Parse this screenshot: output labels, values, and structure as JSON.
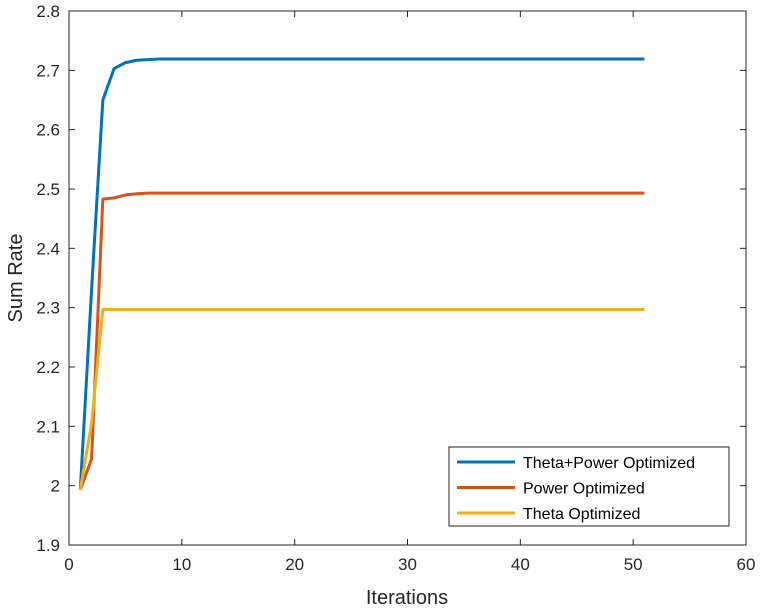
{
  "chart_data": {
    "type": "line",
    "xlabel": "Iterations",
    "ylabel": "Sum Rate",
    "xlim": [
      0,
      60
    ],
    "ylim": [
      1.9,
      2.8
    ],
    "xticks": [
      0,
      10,
      20,
      30,
      40,
      50,
      60
    ],
    "yticks": [
      1.9,
      2.0,
      2.1,
      2.2,
      2.3,
      2.4,
      2.5,
      2.6,
      2.7,
      2.8
    ],
    "xtick_labels": [
      "0",
      "10",
      "20",
      "30",
      "40",
      "50",
      "60"
    ],
    "ytick_labels": [
      "1.9",
      "2",
      "2.1",
      "2.2",
      "2.3",
      "2.4",
      "2.5",
      "2.6",
      "2.7",
      "2.8"
    ],
    "grid": false,
    "legend_position": "bottom-right",
    "series": [
      {
        "name": "Theta+Power Optimized",
        "color": "#0072BD",
        "x": [
          1,
          2,
          3,
          4,
          5,
          6,
          7,
          8,
          51
        ],
        "y": [
          1.993,
          2.33,
          2.65,
          2.703,
          2.713,
          2.717,
          2.718,
          2.719,
          2.719
        ]
      },
      {
        "name": "Power Optimized",
        "color": "#D95319",
        "x": [
          1,
          2,
          3,
          4,
          5,
          6,
          7,
          51
        ],
        "y": [
          1.993,
          2.045,
          2.483,
          2.485,
          2.49,
          2.492,
          2.493,
          2.493
        ]
      },
      {
        "name": "Theta Optimized",
        "color": "#EDB120",
        "x": [
          1,
          2,
          3,
          51
        ],
        "y": [
          1.993,
          2.105,
          2.297,
          2.297
        ]
      }
    ]
  }
}
